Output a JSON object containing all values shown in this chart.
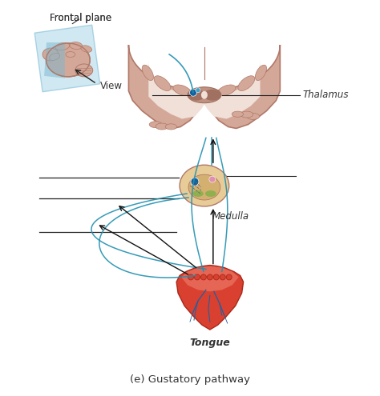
{
  "title": "(e) Gustatory pathway",
  "bg_color": "#ffffff",
  "label_thalamus": "Thalamus",
  "label_medulla": "Medulla",
  "label_tongue": "Tongue",
  "label_frontal_plane": "Frontal plane",
  "label_view": "View",
  "brain_color": "#d4a898",
  "brain_light": "#e8ccc4",
  "brain_white": "#f0e0d8",
  "brain_dark": "#b07868",
  "thalamus_color": "#c09080",
  "thalamus_dark": "#a07060",
  "medulla_color": "#e8cc98",
  "medulla_inner": "#d4b070",
  "tongue_color": "#d94030",
  "tongue_top": "#e86050",
  "tongue_light": "#f08070",
  "blue_panel": "#b8dcea",
  "blue_panel_edge": "#88c0d8",
  "nerve_blue": "#2090b0",
  "black_line": "#222222",
  "green_spot": "#90b050",
  "dot_blue": "#1060a0",
  "pink_spot": "#e090b0",
  "label_color": "#333333",
  "arrow_black": "#111111"
}
